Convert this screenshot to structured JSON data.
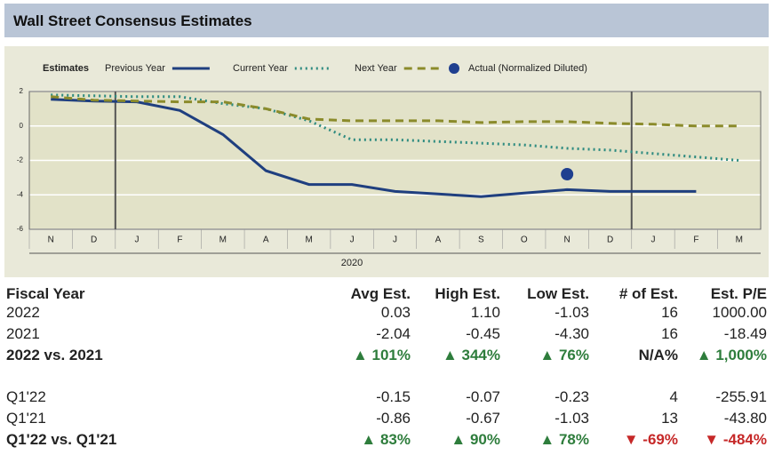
{
  "header": {
    "title": "Wall Street Consensus Estimates"
  },
  "chart_data": {
    "type": "line",
    "legend_title": "Estimates",
    "categories": [
      "N",
      "D",
      "J",
      "F",
      "M",
      "A",
      "M",
      "J",
      "J",
      "A",
      "S",
      "O",
      "N",
      "D",
      "J",
      "F",
      "M"
    ],
    "xlabel": "2020",
    "ylim": [
      -6,
      2
    ],
    "yticks": [
      2,
      0,
      -2,
      -4,
      -6
    ],
    "grid": true,
    "series": [
      {
        "name": "Previous Year",
        "color": "#1f3f7f",
        "style": "solid",
        "values": [
          1.55,
          1.45,
          1.4,
          0.9,
          -0.5,
          -2.6,
          -3.4,
          -3.4,
          -3.8,
          -3.95,
          -4.1,
          -3.9,
          -3.7,
          -3.8,
          -3.8,
          -3.8,
          null
        ]
      },
      {
        "name": "Current Year",
        "color": "#2e8b80",
        "style": "dotted",
        "values": [
          1.8,
          1.75,
          1.7,
          1.7,
          1.3,
          1.0,
          0.3,
          -0.8,
          -0.8,
          -0.9,
          -1.0,
          -1.1,
          -1.3,
          -1.4,
          -1.6,
          -1.8,
          -2.0
        ]
      },
      {
        "name": "Next Year",
        "color": "#8b8b2b",
        "style": "dashed",
        "values": [
          1.7,
          1.5,
          1.45,
          1.4,
          1.4,
          1.0,
          0.4,
          0.3,
          0.3,
          0.3,
          0.2,
          0.25,
          0.25,
          0.15,
          0.1,
          0.0,
          0.0
        ]
      },
      {
        "name": "Actual (Normalized Diluted)",
        "color": "#1f3f8f",
        "style": "marker",
        "values": [
          null,
          null,
          null,
          null,
          null,
          null,
          null,
          null,
          null,
          null,
          null,
          null,
          -2.8,
          null,
          null,
          null,
          null
        ]
      }
    ]
  },
  "table": {
    "headers": [
      "Fiscal Year",
      "Avg Est.",
      "High Est.",
      "Low Est.",
      "# of Est.",
      "Est. P/E"
    ],
    "rows": [
      [
        "2022",
        "0.03",
        "1.10",
        "-1.03",
        "16",
        "1000.00"
      ],
      [
        "2021",
        "-2.04",
        "-0.45",
        "-4.30",
        "16",
        "-18.49"
      ],
      [
        "2022 vs. 2021",
        "▲ 101%",
        "▲ 344%",
        "▲ 76%",
        "N/A%",
        "▲ 1,000%"
      ],
      [
        "Q1'22",
        "-0.15",
        "-0.07",
        "-0.23",
        "4",
        "-255.91"
      ],
      [
        "Q1'21",
        "-0.86",
        "-0.67",
        "-1.03",
        "13",
        "-43.80"
      ],
      [
        "Q1'22 vs. Q1'21",
        "▲ 83%",
        "▲ 90%",
        "▲ 78%",
        "▼ -69%",
        "▼ -484%"
      ]
    ]
  }
}
